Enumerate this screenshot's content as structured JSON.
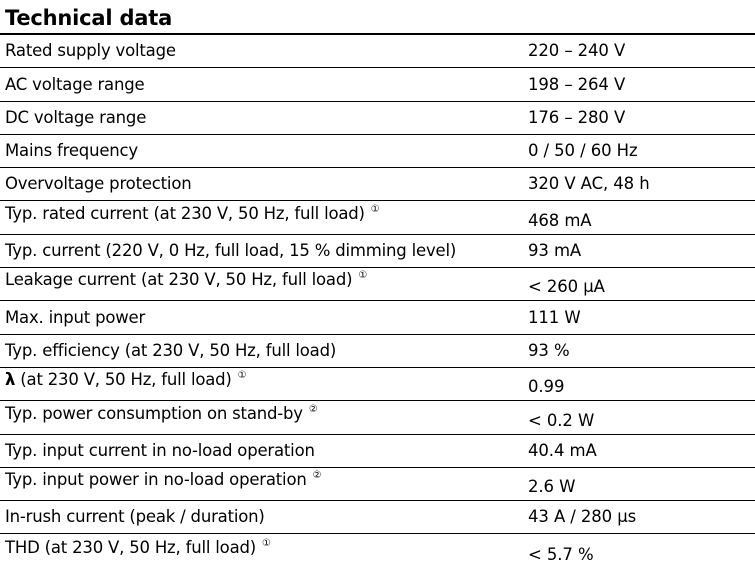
{
  "title": "Technical data",
  "rows": [
    {
      "param": "Rated supply voltage",
      "note": "",
      "value": "220 – 240 V"
    },
    {
      "param": "AC voltage range",
      "note": "",
      "value": "198 – 264 V"
    },
    {
      "param": "DC voltage range",
      "note": "",
      "value": "176 – 280 V"
    },
    {
      "param": "Mains frequency",
      "note": "",
      "value": "0 / 50 / 60 Hz"
    },
    {
      "param": "Overvoltage protection",
      "note": "",
      "value": "320 V AC, 48 h"
    },
    {
      "param": "Typ. rated current (at 230 V, 50 Hz, full load)",
      "note": "①",
      "value": "468 mA"
    },
    {
      "param": "Typ. current (220 V, 0 Hz, full load, 15 % dimming level)",
      "note": "",
      "value": "93 mA"
    },
    {
      "param": "Leakage current (at 230 V, 50 Hz, full load)",
      "note": "①",
      "value": "< 260 µA"
    },
    {
      "param": "Max. input power",
      "note": "",
      "value": "111 W"
    },
    {
      "param": "Typ. efficiency (at 230 V, 50 Hz, full load)",
      "note": "",
      "value": "93 %"
    },
    {
      "param_symbol": "λ",
      "param": " (at 230 V, 50 Hz, full load)",
      "note": "①",
      "value": "0.99"
    },
    {
      "param": "Typ. power consumption on stand-by",
      "note": "②",
      "value": "< 0.2 W"
    },
    {
      "param": "Typ. input current in no-load operation",
      "note": "",
      "value": "40.4 mA"
    },
    {
      "param": "Typ. input power in no-load operation",
      "note": "②",
      "value": "2.6 W"
    },
    {
      "param": "In-rush current (peak / duration)",
      "note": "",
      "value": "43 A / 280 µs"
    },
    {
      "param": "THD (at 230 V, 50 Hz, full load)",
      "note": "①",
      "value": "< 5.7 %"
    }
  ]
}
